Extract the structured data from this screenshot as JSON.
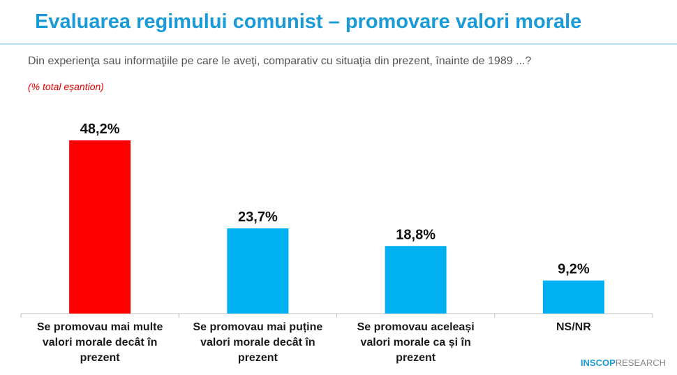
{
  "chart_data": {
    "type": "bar",
    "title": "Evaluarea regimului comunist – promovare valori morale",
    "subtitle": "Din experienţa sau informaţiile pe care le aveţi, comparativ cu situaţia din prezent, înainte de 1989 ...?",
    "note": "(% total eșantion)",
    "categories": [
      "Se promovau mai multe valori morale decât în prezent",
      "Se promovau mai puține valori morale decât în prezent",
      "Se promovau aceleași valori morale ca și în prezent",
      "NS/NR"
    ],
    "values": [
      48.2,
      23.7,
      18.8,
      9.2
    ],
    "value_labels": [
      "48,2%",
      "23,7%",
      "18,8%",
      "9,2%"
    ],
    "colors": [
      "#ff0000",
      "#00b0f0",
      "#00b0f0",
      "#00b0f0"
    ]
  },
  "logo": {
    "brand": "INSCOP",
    "suffix": "RESEARCH"
  }
}
